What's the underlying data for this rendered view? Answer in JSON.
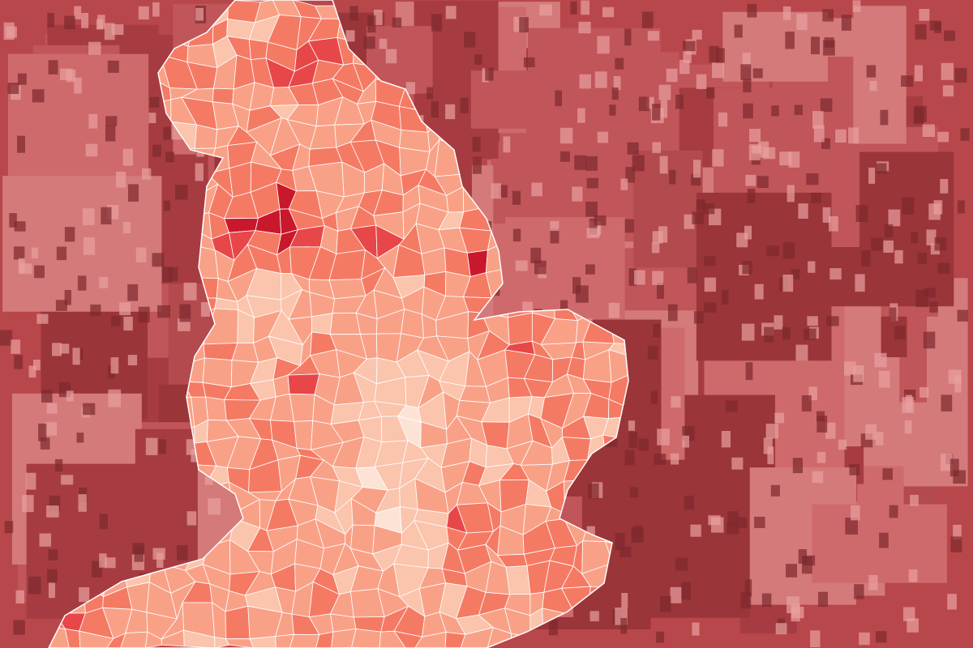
{
  "map": {
    "subject": "choropleth-england-local-authorities",
    "background": "red-tinted-photo-of-terraced-buildings",
    "palette": [
      "#fde3d6",
      "#fbc4ac",
      "#f9a187",
      "#f57a64",
      "#e8474a",
      "#c9182c"
    ],
    "border_color": "#ffffff",
    "tint_color": "#c4474b"
  }
}
